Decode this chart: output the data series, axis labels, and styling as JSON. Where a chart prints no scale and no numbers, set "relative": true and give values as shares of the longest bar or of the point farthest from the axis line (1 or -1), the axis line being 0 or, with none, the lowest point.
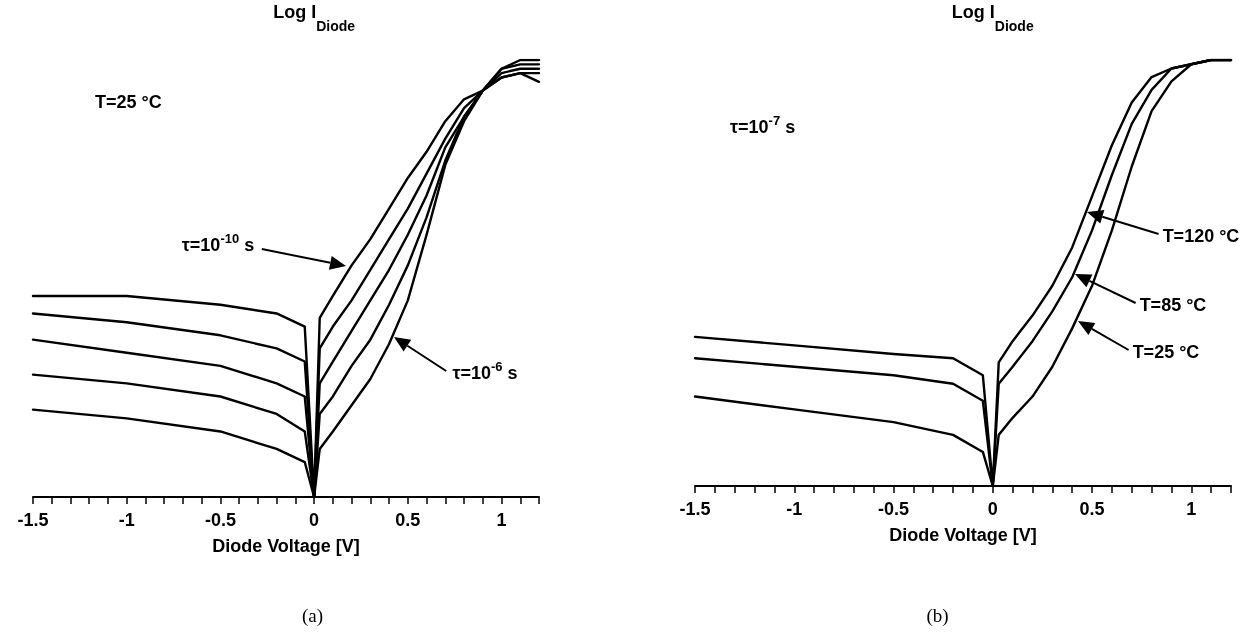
{
  "chart_data": [
    {
      "type": "line",
      "title": "(a)",
      "xlabel": "Diode Voltage [V]",
      "ylabel": "Log I$_{Diode}$",
      "relative": true,
      "marker": "none",
      "grid": false,
      "x": [
        -1.5,
        -1,
        -0.5,
        -0.2,
        -0.05,
        0,
        0.03,
        0.1,
        0.2,
        0.3,
        0.4,
        0.5,
        0.6,
        0.7,
        0.8,
        0.9,
        1.0,
        1.1,
        1.2
      ],
      "xlim": [
        -1.5,
        1.2
      ],
      "xticks": [
        -1.5,
        {
          "value": -1.4,
          "label": null
        },
        {
          "value": -1.3,
          "label": null
        },
        {
          "value": -1.2,
          "label": null
        },
        {
          "value": -1.1,
          "label": null
        },
        -1,
        {
          "value": -0.9,
          "label": null
        },
        {
          "value": -0.8,
          "label": null
        },
        {
          "value": -0.7,
          "label": null
        },
        {
          "value": -0.6,
          "label": null
        },
        -0.5,
        {
          "value": -0.4,
          "label": null
        },
        {
          "value": -0.3,
          "label": null
        },
        {
          "value": -0.2,
          "label": null
        },
        {
          "value": -0.1,
          "label": null
        },
        0,
        {
          "value": 0.1,
          "label": null
        },
        {
          "value": 0.2,
          "label": null
        },
        {
          "value": 0.3,
          "label": null
        },
        {
          "value": 0.4,
          "label": null
        },
        0.5,
        {
          "value": 0.6,
          "label": null
        },
        {
          "value": 0.7,
          "label": null
        },
        {
          "value": 0.8,
          "label": null
        },
        {
          "value": 0.9,
          "label": null
        },
        1,
        {
          "value": 1.1,
          "label": null
        },
        {
          "value": 1.2,
          "label": null
        }
      ],
      "series": [
        {
          "color": "#000000",
          "values": [
            0.46,
            0.46,
            0.44,
            0.42,
            0.39,
            0,
            0.41,
            0.46,
            0.53,
            0.59,
            0.66,
            0.73,
            0.79,
            0.86,
            0.91,
            0.93,
            0.96,
            0.97,
            0.95
          ]
        },
        {
          "color": "#000000",
          "values": [
            0.42,
            0.4,
            0.37,
            0.34,
            0.31,
            0,
            0.34,
            0.39,
            0.45,
            0.52,
            0.59,
            0.66,
            0.74,
            0.82,
            0.89,
            0.93,
            0.96,
            0.97,
            0.97
          ]
        },
        {
          "color": "#000000",
          "values": [
            0.36,
            0.33,
            0.3,
            0.26,
            0.23,
            0,
            0.26,
            0.31,
            0.38,
            0.45,
            0.52,
            0.6,
            0.69,
            0.8,
            0.87,
            0.93,
            0.97,
            0.98,
            0.98
          ]
        },
        {
          "color": "#000000",
          "values": [
            0.28,
            0.26,
            0.23,
            0.19,
            0.15,
            0,
            0.19,
            0.23,
            0.3,
            0.36,
            0.44,
            0.53,
            0.64,
            0.77,
            0.87,
            0.93,
            0.98,
            0.99,
            0.99
          ]
        },
        {
          "color": "#000000",
          "values": [
            0.2,
            0.18,
            0.15,
            0.11,
            0.08,
            0,
            0.11,
            0.15,
            0.21,
            0.27,
            0.35,
            0.45,
            0.6,
            0.76,
            0.86,
            0.93,
            0.98,
            1.0,
            1.0
          ]
        }
      ],
      "annotations": [
        "T=25 °C",
        "τ=10$^{-10}$ s",
        "τ=10$^{-6}$ s"
      ]
    },
    {
      "type": "line",
      "title": "(b)",
      "xlabel": "Diode Voltage [V]",
      "ylabel": "Log I$_{Diode}$",
      "relative": true,
      "marker": "none",
      "grid": false,
      "x": [
        -1.5,
        -1,
        -0.5,
        -0.2,
        -0.05,
        0,
        0.03,
        0.1,
        0.2,
        0.3,
        0.4,
        0.5,
        0.6,
        0.7,
        0.8,
        0.9,
        1.0,
        1.1,
        1.2
      ],
      "xlim": [
        -1.5,
        1.2
      ],
      "xticks": [
        -1.5,
        {
          "value": -1.4,
          "label": null
        },
        {
          "value": -1.3,
          "label": null
        },
        {
          "value": -1.2,
          "label": null
        },
        {
          "value": -1.1,
          "label": null
        },
        -1,
        {
          "value": -0.9,
          "label": null
        },
        {
          "value": -0.8,
          "label": null
        },
        {
          "value": -0.7,
          "label": null
        },
        {
          "value": -0.6,
          "label": null
        },
        -0.5,
        {
          "value": -0.4,
          "label": null
        },
        {
          "value": -0.3,
          "label": null
        },
        {
          "value": -0.2,
          "label": null
        },
        {
          "value": -0.1,
          "label": null
        },
        0,
        {
          "value": 0.1,
          "label": null
        },
        {
          "value": 0.2,
          "label": null
        },
        {
          "value": 0.3,
          "label": null
        },
        {
          "value": 0.4,
          "label": null
        },
        0.5,
        {
          "value": 0.6,
          "label": null
        },
        {
          "value": 0.7,
          "label": null
        },
        {
          "value": 0.8,
          "label": null
        },
        {
          "value": 0.9,
          "label": null
        },
        1,
        {
          "value": 1.1,
          "label": null
        },
        {
          "value": 1.2,
          "label": null
        }
      ],
      "series": [
        {
          "color": "#000000",
          "values": [
            0.35,
            0.33,
            0.31,
            0.3,
            0.26,
            0,
            0.29,
            0.34,
            0.4,
            0.47,
            0.56,
            0.68,
            0.8,
            0.9,
            0.96,
            0.98,
            0.99,
            1.0,
            1.0
          ]
        },
        {
          "color": "#000000",
          "values": [
            0.3,
            0.28,
            0.26,
            0.24,
            0.2,
            0,
            0.24,
            0.28,
            0.34,
            0.41,
            0.49,
            0.6,
            0.73,
            0.85,
            0.93,
            0.98,
            0.99,
            1.0,
            1.0
          ]
        },
        {
          "color": "#000000",
          "values": [
            0.21,
            0.18,
            0.15,
            0.12,
            0.08,
            0,
            0.12,
            0.16,
            0.21,
            0.28,
            0.37,
            0.47,
            0.6,
            0.75,
            0.88,
            0.95,
            0.99,
            1.0,
            1.0
          ]
        }
      ],
      "annotations": [
        "τ=10$^{-7}$ s",
        "T=120 °C",
        "T=85 °C",
        "T=25 °C"
      ]
    }
  ]
}
